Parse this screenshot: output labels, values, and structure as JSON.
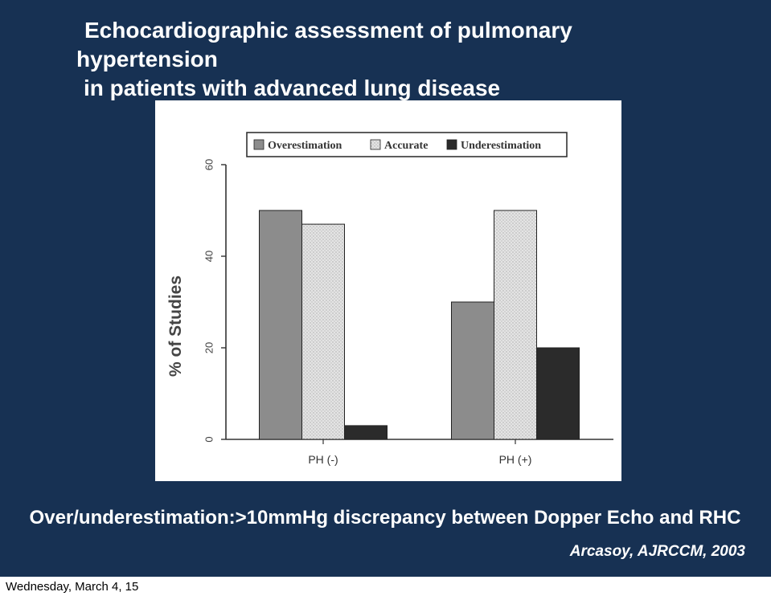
{
  "slide": {
    "title_lines": [
      "Echocardiographic assessment of pulmonary",
      "hypertension",
      "in patients with advanced lung disease"
    ],
    "caption": "Over/underestimation:>10mmHg discrepancy between Dopper Echo and RHC",
    "citation": "Arcasoy, AJRCCM, 2003",
    "footer_date": "Wednesday, March 4, 15",
    "background_color": "#173153"
  },
  "chart_data": {
    "type": "bar",
    "categories": [
      "PH (-)",
      "PH (+)"
    ],
    "series": [
      {
        "name": "Overestimation",
        "values": [
          50,
          30
        ],
        "color": "#8c8c8c"
      },
      {
        "name": "Accurate",
        "values": [
          47,
          50
        ],
        "color": "#d8d8d8"
      },
      {
        "name": "Underestimation",
        "values": [
          3,
          20
        ],
        "color": "#2b2b2b"
      }
    ],
    "ylabel": "% of Studies",
    "xlabel": "",
    "ylim": [
      0,
      60
    ],
    "yticks": [
      0,
      20,
      40,
      60
    ],
    "legend_position": "top",
    "grid": false
  }
}
